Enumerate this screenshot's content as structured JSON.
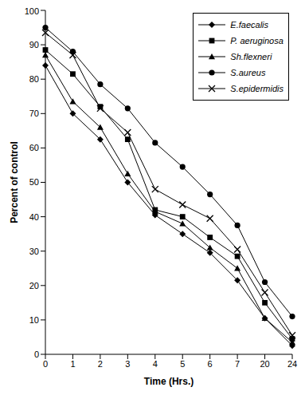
{
  "chart_data": {
    "type": "line",
    "x_label": "Time (Hrs.)",
    "y_label": "Percent of control",
    "categories": [
      "0",
      "1",
      "2",
      "3",
      "4",
      "5",
      "6",
      "7",
      "20",
      "24"
    ],
    "ylim": [
      0,
      100
    ],
    "yticks": [
      0,
      10,
      20,
      30,
      40,
      50,
      60,
      70,
      80,
      90,
      100
    ],
    "grid": false,
    "legend": "top right",
    "series": [
      {
        "name": "E.faecalis",
        "color": "#000000",
        "marker": "diamond",
        "values": [
          84,
          70,
          62.5,
          50,
          40.5,
          35,
          29.5,
          21.5,
          10.5,
          2.5
        ]
      },
      {
        "name": "P. aeruginosa",
        "color": "#000000",
        "marker": "square",
        "values": [
          88.5,
          81.5,
          72,
          62.5,
          42,
          40,
          34,
          28.5,
          15,
          4.5
        ]
      },
      {
        "name": "Sh.flexneri",
        "color": "#000000",
        "marker": "triangle",
        "values": [
          87,
          73.5,
          66,
          52.5,
          41.5,
          38,
          31,
          25,
          10.5,
          3.5
        ]
      },
      {
        "name": "S.aureus",
        "color": "#000000",
        "marker": "circle",
        "values": [
          95,
          88,
          78.5,
          71.5,
          61.5,
          54.5,
          46.5,
          37.5,
          21,
          11
        ]
      },
      {
        "name": "S.epidermidis",
        "color": "#000000",
        "marker": "x",
        "values": [
          93.5,
          87,
          71.5,
          64.5,
          48,
          43.5,
          39.5,
          30.5,
          18,
          5.5
        ]
      }
    ]
  }
}
